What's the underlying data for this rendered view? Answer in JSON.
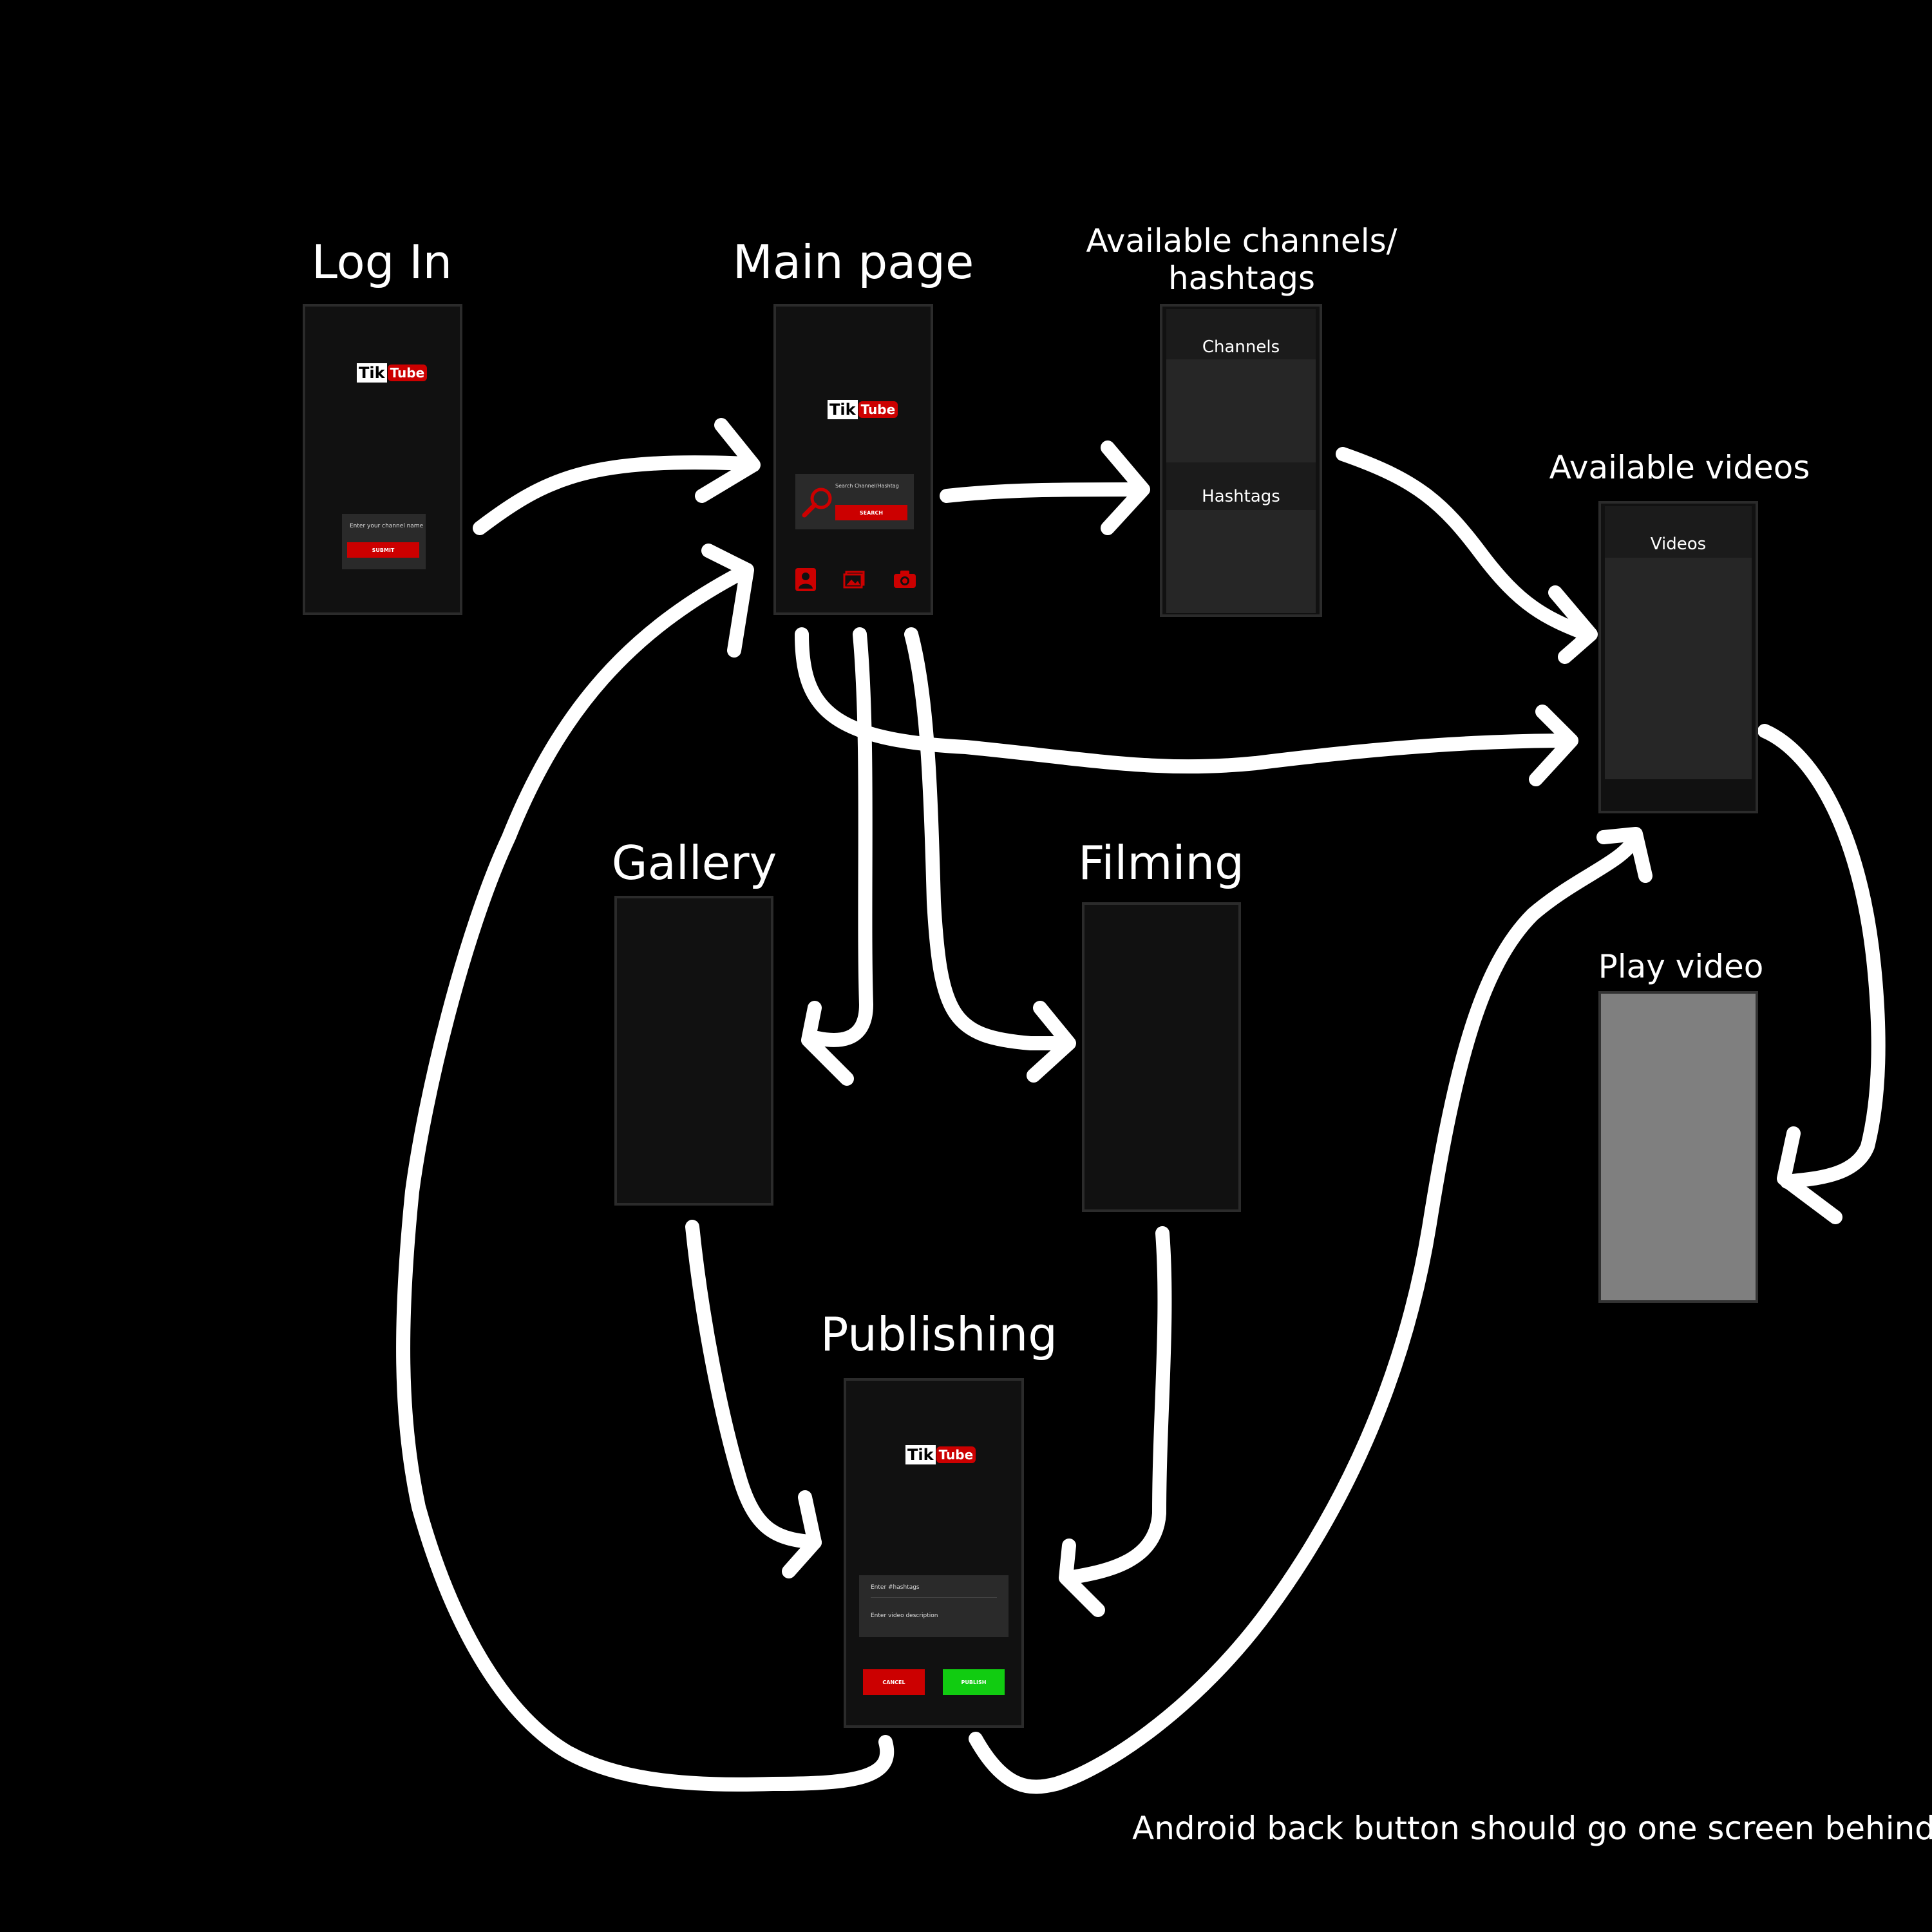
{
  "screens": {
    "login": {
      "title": "Log In",
      "input_placeholder": "Enter your channel name",
      "submit_label": "SUBMIT"
    },
    "main": {
      "title": "Main page",
      "search_placeholder": "Search Channel/Hashtag",
      "search_label": "SEARCH",
      "nav_icons": [
        "profile-icon",
        "gallery-icon",
        "camera-icon"
      ]
    },
    "channels": {
      "title_line1": "Available channels/",
      "title_line2": "hashtags",
      "channels_label": "Channels",
      "hashtags_label": "Hashtags"
    },
    "videos": {
      "title": "Available videos",
      "videos_label": "Videos"
    },
    "gallery": {
      "title": "Gallery"
    },
    "filming": {
      "title": "Filming"
    },
    "play": {
      "title": "Play video"
    },
    "publishing": {
      "title": "Publishing",
      "hashtags_placeholder": "Enter #hashtags",
      "description_placeholder": "Enter video description",
      "cancel_label": "CANCEL",
      "publish_label": "PUBLISH"
    }
  },
  "logo": {
    "tik": "Tik",
    "tube": "Tube"
  },
  "note": "Android back button should go one screen behind",
  "colors": {
    "background": "#000000",
    "phone": "#111111",
    "card": "#2a2a2a",
    "accent_red": "#cc0000",
    "publish_green": "#11cc11",
    "play_gray": "#7f7f7f",
    "arrow": "#ffffff"
  }
}
